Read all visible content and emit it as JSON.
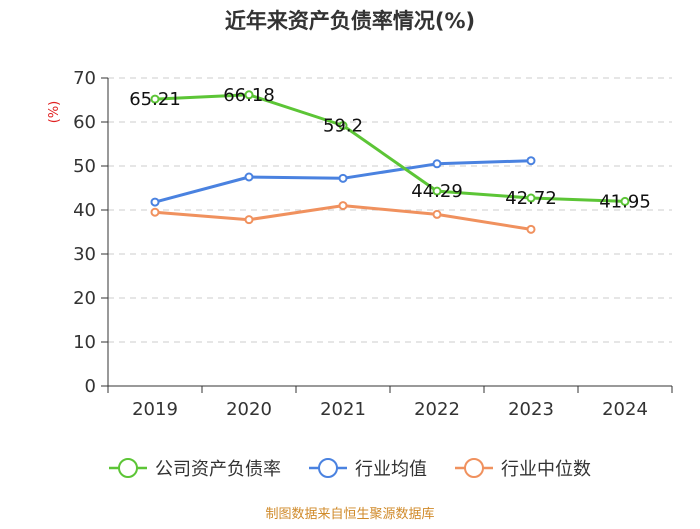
{
  "chart_data": {
    "type": "line",
    "title": "近年来资产负债率情况(%)",
    "unit": "(%)",
    "categories": [
      "2019",
      "2020",
      "2021",
      "2022",
      "2023",
      "2024"
    ],
    "y_ticks": [
      "0",
      "10",
      "20",
      "30",
      "40",
      "50",
      "60",
      "70"
    ],
    "ylim": [
      0,
      70
    ],
    "grid": true,
    "legend_position": "bottom",
    "series": [
      {
        "name": "公司资产负债率",
        "color": "#5cc536",
        "values": [
          65.21,
          66.18,
          59.2,
          44.29,
          42.72,
          41.95
        ],
        "labels": [
          "65.21",
          "66.18",
          "59.2",
          "44.29",
          "42.72",
          "41.95"
        ]
      },
      {
        "name": "行业均值",
        "color": "#4a82e0",
        "values": [
          41.8,
          47.5,
          47.2,
          50.5,
          51.2,
          null
        ]
      },
      {
        "name": "行业中位数",
        "color": "#f0915e",
        "values": [
          39.5,
          37.8,
          41.0,
          39.0,
          35.6,
          null
        ]
      }
    ],
    "source": "制图数据来自恒生聚源数据库"
  }
}
